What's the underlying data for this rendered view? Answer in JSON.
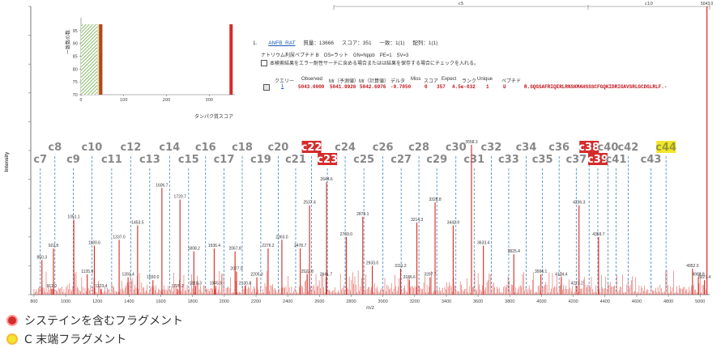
{
  "chart_data": {
    "type": "bar",
    "xlabel": "m/z",
    "ylabel": "Intensity",
    "xlim": [
      780,
      5060
    ],
    "x_ticks": [
      800,
      1000,
      1200,
      1400,
      1600,
      1800,
      2000,
      2200,
      2400,
      2600,
      2800,
      3000,
      3200,
      3400,
      3600,
      3800,
      4000,
      4200,
      4400,
      4600,
      4800,
      5000
    ],
    "peaks": [
      {
        "mz": 850.3,
        "h": 0.12,
        "label": "850.3"
      },
      {
        "mz": 912.0,
        "h": 0.02,
        "label": "912.0"
      },
      {
        "mz": 922.8,
        "h": 0.16,
        "label": "922.8"
      },
      {
        "mz": 1051.1,
        "h": 0.26,
        "label": "1051.1"
      },
      {
        "mz": 1135.9,
        "h": 0.07,
        "label": "1135.9"
      },
      {
        "mz": 1180.6,
        "h": 0.17,
        "label": "1180.6"
      },
      {
        "mz": 1223.4,
        "h": 0.02,
        "label": "1223.4"
      },
      {
        "mz": 1337.0,
        "h": 0.19,
        "label": "1337.0"
      },
      {
        "mz": 1393.4,
        "h": 0.06,
        "label": "1393.4"
      },
      {
        "mz": 1453.5,
        "h": 0.24,
        "label": "1453.5"
      },
      {
        "mz": 1550.0,
        "h": 0.05,
        "label": "1550.0"
      },
      {
        "mz": 1606.7,
        "h": 0.37,
        "label": "1606.7"
      },
      {
        "mz": 1705.2,
        "h": 0.02,
        "label": "1705.2"
      },
      {
        "mz": 1720.7,
        "h": 0.33,
        "label": "1720.7"
      },
      {
        "mz": 1808.2,
        "h": 0.15,
        "label": "1808.2"
      },
      {
        "mz": 1818.3,
        "h": 0.03,
        "label": "1818.3"
      },
      {
        "mz": 1936.4,
        "h": 0.16,
        "label": "1936.4"
      },
      {
        "mz": 1945.9,
        "h": 0.03,
        "label": "1945.9"
      },
      {
        "mz": 2067.8,
        "h": 0.15,
        "label": "2067.8"
      },
      {
        "mz": 2077.0,
        "h": 0.08,
        "label": "2077.0"
      },
      {
        "mz": 2130.8,
        "h": 0.03,
        "label": "2130.8"
      },
      {
        "mz": 2205.3,
        "h": 0.06,
        "label": "2205.3"
      },
      {
        "mz": 2276.2,
        "h": 0.16,
        "label": "2276.2"
      },
      {
        "mz": 2363.0,
        "h": 0.19,
        "label": "2363.0"
      },
      {
        "mz": 2478.7,
        "h": 0.16,
        "label": "2478.7"
      },
      {
        "mz": 2522.8,
        "h": 0.07,
        "label": "2522.8"
      },
      {
        "mz": 2537.4,
        "h": 0.31,
        "label": "2537.4"
      },
      {
        "mz": 2641.7,
        "h": 0.06,
        "label": "2641.7"
      },
      {
        "mz": 2644.6,
        "h": 0.39,
        "label": "2644.6"
      },
      {
        "mz": 2769.0,
        "h": 0.2,
        "label": "2769.0"
      },
      {
        "mz": 2873.1,
        "h": 0.27,
        "label": "2873.1"
      },
      {
        "mz": 2933.0,
        "h": 0.1,
        "label": "2933.0"
      },
      {
        "mz": 3111.2,
        "h": 0.09,
        "label": "3111.2"
      },
      {
        "mz": 3166.6,
        "h": 0.05,
        "label": "3166.6"
      },
      {
        "mz": 3214.3,
        "h": 0.25,
        "label": "3214.3"
      },
      {
        "mz": 3297.7,
        "h": 0.06,
        "label": "3297.7"
      },
      {
        "mz": 3328.8,
        "h": 0.32,
        "label": "3328.8"
      },
      {
        "mz": 3442.9,
        "h": 0.24,
        "label": "3442.9"
      },
      {
        "mz": 3558.3,
        "h": 0.52,
        "label": "3558.3"
      },
      {
        "mz": 3633.4,
        "h": 0.17,
        "label": "3633.4"
      },
      {
        "mz": 3825.4,
        "h": 0.14,
        "label": "3825.4"
      },
      {
        "mz": 3996.1,
        "h": 0.07,
        "label": "3996.1"
      },
      {
        "mz": 4124.4,
        "h": 0.06,
        "label": "4124.4"
      },
      {
        "mz": 4223.2,
        "h": 0.03,
        "label": "4223.2"
      },
      {
        "mz": 4236.3,
        "h": 0.31,
        "label": "4236.3"
      },
      {
        "mz": 4359.7,
        "h": 0.2,
        "label": "4359.7"
      },
      {
        "mz": 4952.0,
        "h": 0.09,
        "label": "4952.0"
      },
      {
        "mz": 4988.8,
        "h": 0.06,
        "label": "4988.8"
      },
      {
        "mz": 5027.4,
        "h": 0.05,
        "label": "5027.4"
      },
      {
        "mz": 5043.0,
        "h": 1.0,
        "label": "5043.0"
      }
    ],
    "fragments": [
      {
        "label": "c7",
        "mz": 840,
        "row": 2,
        "highlight": "none"
      },
      {
        "label": "c8",
        "mz": 932,
        "row": 1,
        "highlight": "none"
      },
      {
        "label": "c9",
        "mz": 1048,
        "row": 2,
        "highlight": "none"
      },
      {
        "label": "c10",
        "mz": 1165,
        "row": 1,
        "highlight": "none"
      },
      {
        "label": "c11",
        "mz": 1290,
        "row": 2,
        "highlight": "none"
      },
      {
        "label": "c12",
        "mz": 1410,
        "row": 1,
        "highlight": "none"
      },
      {
        "label": "c13",
        "mz": 1530,
        "row": 2,
        "highlight": "none"
      },
      {
        "label": "c14",
        "mz": 1655,
        "row": 1,
        "highlight": "none"
      },
      {
        "label": "c15",
        "mz": 1775,
        "row": 2,
        "highlight": "none"
      },
      {
        "label": "c16",
        "mz": 1882,
        "row": 1,
        "highlight": "none"
      },
      {
        "label": "c17",
        "mz": 1998,
        "row": 2,
        "highlight": "none"
      },
      {
        "label": "c18",
        "mz": 2113,
        "row": 1,
        "highlight": "none"
      },
      {
        "label": "c19",
        "mz": 2230,
        "row": 2,
        "highlight": "none"
      },
      {
        "label": "c20",
        "mz": 2340,
        "row": 1,
        "highlight": "none"
      },
      {
        "label": "c21",
        "mz": 2450,
        "row": 2,
        "highlight": "none"
      },
      {
        "label": "c22",
        "mz": 2550,
        "row": 1,
        "highlight": "cys"
      },
      {
        "label": "c23",
        "mz": 2650,
        "row": 2,
        "highlight": "cys"
      },
      {
        "label": "c24",
        "mz": 2762,
        "row": 1,
        "highlight": "none"
      },
      {
        "label": "c25",
        "mz": 2880,
        "row": 2,
        "highlight": "none"
      },
      {
        "label": "c26",
        "mz": 3000,
        "row": 1,
        "highlight": "none"
      },
      {
        "label": "c27",
        "mz": 3115,
        "row": 2,
        "highlight": "none"
      },
      {
        "label": "c28",
        "mz": 3227,
        "row": 1,
        "highlight": "none"
      },
      {
        "label": "c29",
        "mz": 3340,
        "row": 2,
        "highlight": "none"
      },
      {
        "label": "c30",
        "mz": 3460,
        "row": 1,
        "highlight": "none"
      },
      {
        "label": "c31",
        "mz": 3575,
        "row": 2,
        "highlight": "none"
      },
      {
        "label": "c32",
        "mz": 3683,
        "row": 1,
        "highlight": "none"
      },
      {
        "label": "c33",
        "mz": 3793,
        "row": 2,
        "highlight": "none"
      },
      {
        "label": "c34",
        "mz": 3903,
        "row": 1,
        "highlight": "none"
      },
      {
        "label": "c35",
        "mz": 4006,
        "row": 2,
        "highlight": "none"
      },
      {
        "label": "c36",
        "mz": 4111,
        "row": 1,
        "highlight": "none"
      },
      {
        "label": "c37",
        "mz": 4219,
        "row": 2,
        "highlight": "none"
      },
      {
        "label": "c38",
        "mz": 4300,
        "row": 1,
        "highlight": "cys"
      },
      {
        "label": "c39",
        "mz": 4355,
        "row": 2,
        "highlight": "cys"
      },
      {
        "label": "c40",
        "mz": 4419,
        "row": 1,
        "highlight": "none"
      },
      {
        "label": "c41",
        "mz": 4470,
        "row": 2,
        "highlight": "none"
      },
      {
        "label": "c42",
        "mz": 4546,
        "row": 1,
        "highlight": "none"
      },
      {
        "label": "c43",
        "mz": 4690,
        "row": 2,
        "highlight": "none"
      },
      {
        "label": "c44",
        "mz": 4785,
        "row": 1,
        "highlight": "cterm"
      }
    ],
    "top_ruler": {
      "labels": [
        "c5",
        "c10"
      ]
    },
    "colors": {
      "peak": "#d7281f",
      "guide": "#3d86c2",
      "label": "#888888",
      "cys": "#d42b2b",
      "cterm": "#f2e62c"
    }
  },
  "inset_chart": {
    "type": "histogram",
    "xlabel": "タンパク質スコア",
    "ylabel": "一致数の数",
    "x_ticks": [
      0,
      100,
      200,
      300
    ],
    "y_ticks": [
      70,
      75,
      80,
      85,
      90,
      95
    ],
    "xlim": [
      0,
      360
    ],
    "ylim": [
      70,
      100
    ],
    "regions": [
      {
        "from": 0,
        "to": 38,
        "fill": "green-hatch"
      },
      {
        "from": 38,
        "to": 42,
        "fill": "#e8e0b8"
      },
      {
        "from": 42,
        "to": 50,
        "fill": "#b04a1a"
      }
    ],
    "hit_score": 351
  },
  "result": {
    "index": "1.",
    "accession": "ANFB_RAT",
    "mass_label": "質量：13666",
    "score_label": "スコア：351",
    "match_label": "一致：1(1)",
    "seq_label": "配列：1(1)",
    "desc": "ナトリウム利尿ペプチド B　OS=ラット　GN=Nppb　PE=1　SV=3",
    "checkbox_text": "本検索結果をエラー耐性サーチに含める場合またはは結果を保存する場合にチェックを入れる。",
    "table_headers": [
      "クエリー",
      "Observed",
      "Mr（予測値）",
      "Mr（計算値）",
      "デルタ",
      "Miss",
      "スコア",
      "Expect",
      "ランク",
      "Unique",
      "ペプチド"
    ],
    "row": [
      "1",
      "5043.0000",
      "5041.9926",
      "5042.6976",
      "-0.7050",
      "0",
      "357",
      "4.5e-032",
      "1",
      "U",
      "R.SQGSAFRIQERLRNSKMAHSSSCFGQKIDRIGAVSRLGCDGLRLF.-"
    ]
  },
  "legend": {
    "cys": "システインを含むフラグメント",
    "cterm": "C 末端フラグメント"
  }
}
